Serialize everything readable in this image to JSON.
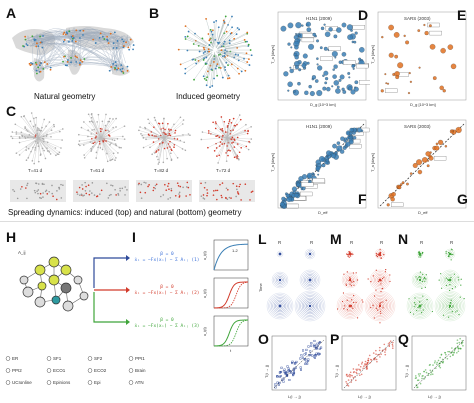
{
  "panels": {
    "A": {
      "label": "A",
      "caption": "Natural geometry"
    },
    "B": {
      "label": "B",
      "caption": "Induced geometry"
    },
    "C": {
      "label": "C",
      "caption": "Spreading dynamics: induced (top) and natural (bottom) geometry",
      "time_labels": [
        "T=41 d",
        "T=61 d",
        "T=82 d",
        "T=72 d"
      ]
    },
    "D": {
      "label": "D",
      "title": "H1N1 (2009)",
      "xlabel": "D_g [10^3 km]",
      "ylabel": "T_a [days]"
    },
    "E": {
      "label": "E",
      "title": "SARS (2003)",
      "xlabel": "D_g [10^3 km]",
      "ylabel": "T_a [days]"
    },
    "F": {
      "label": "F",
      "title": "H1N1 (2009)",
      "xlabel": "D_eff",
      "ylabel": "T_a [days]"
    },
    "G": {
      "label": "G",
      "title": "SARS (2003)",
      "xlabel": "D_eff",
      "ylabel": "T_a [days]"
    },
    "H": {
      "label": "H",
      "node_label": "A_ij",
      "legend": [
        "ER",
        "SF1",
        "SF2",
        "PPI1",
        "PPI2",
        "ECO1",
        "ECO2",
        "Brain",
        "UCIonline",
        "Epinions",
        "Epi",
        "ATN"
      ]
    },
    "I": {
      "label": "I",
      "eqs": [
        {
          "top": "β = 0",
          "bottom": "ẋᵢ = −Fx(xᵢ) − Σ Aᵢⱼ (1)",
          "color": "#3a6fd8"
        },
        {
          "top": "β = 0",
          "bottom": "ẋᵢ = −Fx(xᵢ) − Σ Aᵢⱼ (2)",
          "color": "#d23a2a"
        },
        {
          "top": "β = 0",
          "bottom": "ẋᵢ = −Fx(xᵢ) − Σ Aᵢⱼ (3)",
          "color": "#3fa53a"
        }
      ],
      "curve_ylabel": "x_i(t)",
      "curve_xlabel": "t",
      "curve_tag": "1-2"
    },
    "L": {
      "label": "L",
      "col_labels": [
        "R",
        "R"
      ],
      "row_label": "Time"
    },
    "M": {
      "label": "M",
      "col_labels": [
        "R",
        "R"
      ]
    },
    "N": {
      "label": "N",
      "col_labels": [
        "R",
        "R"
      ]
    },
    "O": {
      "label": "O",
      "xlabel": "L(i → j)",
      "ylabel": "T(i → j)"
    },
    "P": {
      "label": "P",
      "xlabel": "L(i → j)",
      "ylabel": "T(i → j)"
    },
    "Q": {
      "label": "Q",
      "xlabel": "L(i → j)",
      "ylabel": "T(i → j)"
    }
  },
  "colors": {
    "blue": "#3b7fb5",
    "orange": "#e07020",
    "red": "#d23a2a",
    "green": "#3fa53a",
    "navy": "#2e4a9a"
  },
  "chart_data": [
    {
      "type": "scatter",
      "panel": "D",
      "title": "H1N1 (2009)",
      "xlabel": "D_g [10^3 km]",
      "ylabel": "T_a [days]"
    },
    {
      "type": "scatter",
      "panel": "E",
      "title": "SARS (2003)",
      "xlabel": "D_g [10^3 km]",
      "ylabel": "T_a [days]"
    },
    {
      "type": "scatter",
      "panel": "F",
      "title": "H1N1 (2009)",
      "xlabel": "D_eff",
      "ylabel": "T_a [days]"
    },
    {
      "type": "scatter",
      "panel": "G",
      "title": "SARS (2003)",
      "xlabel": "D_eff",
      "ylabel": "T_a [days]"
    }
  ]
}
